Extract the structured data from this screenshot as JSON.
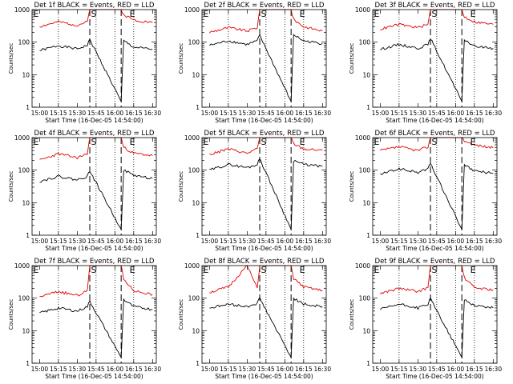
{
  "chart_data": [
    {
      "type": "line",
      "title": "Det 1f BLACK = Events, RED = LLD",
      "xlabel": "Start Time (16-Dec-05 14:54:00)",
      "ylabel": "Counts/sec",
      "x_ticks": [
        "15:00",
        "15:15",
        "15:30",
        "15:45",
        "16:00",
        "16:15",
        "16:30"
      ],
      "y_ticks": [
        "1",
        "10",
        "100",
        "1000"
      ],
      "ylim": [
        1,
        1000
      ],
      "yscale": "log",
      "markers": [
        "E",
        "S",
        "E"
      ],
      "dotted_lines": [
        "15:15",
        "15:45",
        "16:00",
        "16:15"
      ],
      "dashed_lines": [
        "15:40",
        "16:05"
      ],
      "series": [
        {
          "name": "BLACK = Events",
          "color": "#000000",
          "x": [
            "15:00",
            "15:15",
            "15:30",
            "15:38",
            "15:40",
            "16:05",
            "16:07",
            "16:15",
            "16:30"
          ],
          "values": [
            55,
            78,
            62,
            80,
            120,
            1.5,
            110,
            70,
            60
          ]
        },
        {
          "name": "RED = LLD",
          "color": "#e00000",
          "x": [
            "15:00",
            "15:15",
            "15:30",
            "15:38",
            "15:40",
            "16:05",
            "16:07",
            "16:15",
            "16:30"
          ],
          "values": [
            300,
            420,
            330,
            420,
            1000,
            1000,
            700,
            480,
            400
          ]
        }
      ]
    },
    {
      "type": "line",
      "title": "Det 2f BLACK = Events, RED = LLD",
      "xlabel": "Start Time (16-Dec-05 14:54:00)",
      "ylabel": "Counts/sec",
      "x_ticks": [
        "15:00",
        "15:15",
        "15:30",
        "15:45",
        "16:00",
        "16:15",
        "16:30"
      ],
      "y_ticks": [
        "1",
        "10",
        "100",
        "1000"
      ],
      "ylim": [
        1,
        1000
      ],
      "yscale": "log",
      "markers": [
        "E",
        "S",
        "E"
      ],
      "dotted_lines": [
        "15:15",
        "15:45",
        "16:00",
        "16:15"
      ],
      "dashed_lines": [
        "15:40",
        "16:05"
      ],
      "series": [
        {
          "name": "BLACK = Events",
          "color": "#000000",
          "x": [
            "15:00",
            "15:15",
            "15:30",
            "15:38",
            "15:40",
            "16:05",
            "16:07",
            "16:15",
            "16:30"
          ],
          "values": [
            80,
            110,
            85,
            110,
            160,
            1.5,
            170,
            110,
            90
          ]
        },
        {
          "name": "RED = LLD",
          "color": "#e00000",
          "x": [
            "15:00",
            "15:15",
            "15:30",
            "15:38",
            "15:40",
            "16:05",
            "16:07",
            "16:15",
            "16:30"
          ],
          "values": [
            200,
            280,
            220,
            280,
            1000,
            1000,
            500,
            300,
            220
          ]
        }
      ]
    },
    {
      "type": "line",
      "title": "Det 3f BLACK = Events, RED = LLD",
      "xlabel": "Start Time (16-Dec-05 14:54:00)",
      "ylabel": "Counts/sec",
      "x_ticks": [
        "15:00",
        "15:15",
        "15:30",
        "15:45",
        "16:00",
        "16:15",
        "16:30"
      ],
      "y_ticks": [
        "1",
        "10",
        "100",
        "1000"
      ],
      "ylim": [
        1,
        1000
      ],
      "yscale": "log",
      "markers": [
        "E",
        "S",
        "E"
      ],
      "dotted_lines": [
        "15:15",
        "15:45",
        "16:00",
        "16:15"
      ],
      "dashed_lines": [
        "15:40",
        "16:05"
      ],
      "series": [
        {
          "name": "BLACK = Events",
          "color": "#000000",
          "x": [
            "15:00",
            "15:15",
            "15:30",
            "15:38",
            "15:40",
            "16:05",
            "16:07",
            "16:15",
            "16:30"
          ],
          "values": [
            60,
            85,
            65,
            85,
            130,
            1.5,
            120,
            75,
            65
          ]
        },
        {
          "name": "RED = LLD",
          "color": "#e00000",
          "x": [
            "15:00",
            "15:15",
            "15:30",
            "15:38",
            "15:40",
            "16:05",
            "16:07",
            "16:15",
            "16:30"
          ],
          "values": [
            250,
            350,
            280,
            350,
            1000,
            1000,
            600,
            420,
            350
          ]
        }
      ]
    },
    {
      "type": "line",
      "title": "Det 4f BLACK = Events, RED = LLD",
      "xlabel": "Start Time (16-Dec-05 14:54:00)",
      "ylabel": "Counts/sec",
      "x_ticks": [
        "15:00",
        "15:15",
        "15:30",
        "15:45",
        "16:00",
        "16:15",
        "16:30"
      ],
      "y_ticks": [
        "1",
        "10",
        "100",
        "1000"
      ],
      "ylim": [
        1,
        1000
      ],
      "yscale": "log",
      "markers": [
        "E",
        "S",
        "E"
      ],
      "dotted_lines": [
        "15:15",
        "15:45",
        "16:00",
        "16:15"
      ],
      "dashed_lines": [
        "15:40",
        "16:05"
      ],
      "series": [
        {
          "name": "BLACK = Events",
          "color": "#000000",
          "x": [
            "15:00",
            "15:15",
            "15:30",
            "15:38",
            "15:40",
            "16:05",
            "16:07",
            "16:15",
            "16:30"
          ],
          "values": [
            45,
            65,
            50,
            65,
            95,
            1.5,
            100,
            70,
            55
          ]
        },
        {
          "name": "RED = LLD",
          "color": "#e00000",
          "x": [
            "15:00",
            "15:15",
            "15:30",
            "15:38",
            "15:40",
            "16:05",
            "16:07",
            "16:15",
            "16:30"
          ],
          "values": [
            200,
            320,
            240,
            320,
            1000,
            1000,
            500,
            330,
            280
          ]
        }
      ]
    },
    {
      "type": "line",
      "title": "Det 5f BLACK = Events, RED = LLD",
      "xlabel": "Start Time (16-Dec-05 14:54:00)",
      "ylabel": "Counts/sec",
      "x_ticks": [
        "15:00",
        "15:15",
        "15:30",
        "15:45",
        "16:00",
        "16:15",
        "16:30"
      ],
      "y_ticks": [
        "1",
        "10",
        "100",
        "1000"
      ],
      "ylim": [
        1,
        1000
      ],
      "yscale": "log",
      "markers": [
        "E",
        "S",
        "E"
      ],
      "dotted_lines": [
        "15:15",
        "15:45",
        "16:00",
        "16:15"
      ],
      "dashed_lines": [
        "15:40",
        "16:05"
      ],
      "series": [
        {
          "name": "BLACK = Events",
          "color": "#000000",
          "x": [
            "15:00",
            "15:15",
            "15:30",
            "15:38",
            "15:40",
            "16:05",
            "16:07",
            "16:15",
            "16:30"
          ],
          "values": [
            100,
            150,
            120,
            150,
            230,
            1.5,
            200,
            150,
            130
          ]
        },
        {
          "name": "RED = LLD",
          "color": "#e00000",
          "x": [
            "15:00",
            "15:15",
            "15:30",
            "15:38",
            "15:40",
            "16:05",
            "16:07",
            "16:15",
            "16:30"
          ],
          "values": [
            300,
            450,
            330,
            450,
            1000,
            1000,
            650,
            450,
            400
          ]
        }
      ]
    },
    {
      "type": "line",
      "title": "Det 6f BLACK = Events, RED = LLD",
      "xlabel": "Start Time (16-Dec-05 14:54:00)",
      "ylabel": "Counts/sec",
      "x_ticks": [
        "15:00",
        "15:15",
        "15:30",
        "15:45",
        "16:00",
        "16:15",
        "16:30"
      ],
      "y_ticks": [
        "1",
        "10",
        "100",
        "1000"
      ],
      "ylim": [
        1,
        1000
      ],
      "yscale": "log",
      "markers": [
        "E",
        "S",
        "E"
      ],
      "dotted_lines": [
        "15:15",
        "15:45",
        "16:00",
        "16:15"
      ],
      "dashed_lines": [
        "15:40",
        "16:05"
      ],
      "series": [
        {
          "name": "BLACK = Events",
          "color": "#000000",
          "x": [
            "15:00",
            "15:15",
            "15:30",
            "15:38",
            "15:40",
            "16:05",
            "16:07",
            "16:15",
            "16:30"
          ],
          "values": [
            75,
            110,
            85,
            110,
            160,
            1.5,
            140,
            95,
            80
          ]
        },
        {
          "name": "RED = LLD",
          "color": "#e00000",
          "x": [
            "15:00",
            "15:15",
            "15:30",
            "15:38",
            "15:40",
            "16:05",
            "16:07",
            "16:15",
            "16:30"
          ],
          "values": [
            400,
            520,
            400,
            520,
            1000,
            1000,
            800,
            600,
            480
          ]
        }
      ]
    },
    {
      "type": "line",
      "title": "Det 7f BLACK = Events, RED = LLD",
      "xlabel": "Start Time (16-Dec-05 14:54:00)",
      "ylabel": "Counts/sec",
      "x_ticks": [
        "15:00",
        "15:15",
        "15:30",
        "15:45",
        "16:00",
        "16:15",
        "16:30"
      ],
      "y_ticks": [
        "1",
        "10",
        "100",
        "1000"
      ],
      "ylim": [
        1,
        1000
      ],
      "yscale": "log",
      "markers": [
        "E",
        "S",
        "E"
      ],
      "dotted_lines": [
        "15:15",
        "15:45",
        "16:00",
        "16:15"
      ],
      "dashed_lines": [
        "15:40",
        "16:05"
      ],
      "series": [
        {
          "name": "BLACK = Events",
          "color": "#000000",
          "x": [
            "15:00",
            "15:15",
            "15:30",
            "15:38",
            "15:40",
            "16:05",
            "16:07",
            "16:15",
            "16:30"
          ],
          "values": [
            35,
            50,
            40,
            55,
            80,
            1.5,
            90,
            55,
            45
          ]
        },
        {
          "name": "RED = LLD",
          "color": "#e00000",
          "x": [
            "15:00",
            "15:15",
            "15:30",
            "15:38",
            "15:40",
            "16:05",
            "16:07",
            "16:15",
            "16:30"
          ],
          "values": [
            110,
            160,
            120,
            170,
            1000,
            1000,
            380,
            170,
            130
          ]
        }
      ]
    },
    {
      "type": "line",
      "title": "Det 8f BLACK = Events, RED = LLD",
      "xlabel": "Start Time (16-Dec-05 14:54:00)",
      "ylabel": "Counts/sec",
      "x_ticks": [
        "15:00",
        "15:15",
        "15:30",
        "15:45",
        "16:00",
        "16:15",
        "16:30"
      ],
      "y_ticks": [
        "1",
        "10",
        "100",
        "1000"
      ],
      "ylim": [
        1,
        1000
      ],
      "yscale": "log",
      "markers": [
        "E",
        "S",
        "E"
      ],
      "dotted_lines": [
        "15:15",
        "15:45",
        "16:00",
        "16:15"
      ],
      "dashed_lines": [
        "15:40",
        "16:05"
      ],
      "series": [
        {
          "name": "BLACK = Events",
          "color": "#000000",
          "x": [
            "15:00",
            "15:15",
            "15:30",
            "15:38",
            "15:40",
            "16:05",
            "16:07",
            "16:15",
            "16:30"
          ],
          "values": [
            50,
            65,
            55,
            70,
            100,
            1.5,
            100,
            65,
            55
          ]
        },
        {
          "name": "RED = LLD",
          "color": "#e00000",
          "x": [
            "15:00",
            "15:15",
            "15:30",
            "15:38",
            "15:40",
            "16:05",
            "16:07",
            "16:15",
            "16:30"
          ],
          "values": [
            150,
            220,
            1000,
            200,
            1000,
            1000,
            400,
            220,
            170
          ]
        }
      ]
    },
    {
      "type": "line",
      "title": "Det 9f BLACK = Events, RED = LLD",
      "xlabel": "Start Time (16-Dec-05 14:54:00)",
      "ylabel": "Counts/sec",
      "x_ticks": [
        "15:00",
        "15:15",
        "15:30",
        "15:45",
        "16:00",
        "16:15",
        "16:30"
      ],
      "y_ticks": [
        "1",
        "10",
        "100",
        "1000"
      ],
      "ylim": [
        1,
        1000
      ],
      "yscale": "log",
      "markers": [
        "E",
        "S",
        "E"
      ],
      "dotted_lines": [
        "15:15",
        "15:45",
        "16:00",
        "16:15"
      ],
      "dashed_lines": [
        "15:40",
        "16:05"
      ],
      "series": [
        {
          "name": "BLACK = Events",
          "color": "#000000",
          "x": [
            "15:00",
            "15:15",
            "15:30",
            "15:38",
            "15:40",
            "16:05",
            "16:07",
            "16:15",
            "16:30"
          ],
          "values": [
            45,
            65,
            50,
            65,
            95,
            1.5,
            90,
            60,
            50
          ]
        },
        {
          "name": "RED = LLD",
          "color": "#e00000",
          "x": [
            "15:00",
            "15:15",
            "15:30",
            "15:38",
            "15:40",
            "16:05",
            "16:07",
            "16:15",
            "16:30"
          ],
          "values": [
            140,
            200,
            160,
            210,
            1000,
            1000,
            420,
            210,
            180
          ]
        }
      ]
    }
  ]
}
